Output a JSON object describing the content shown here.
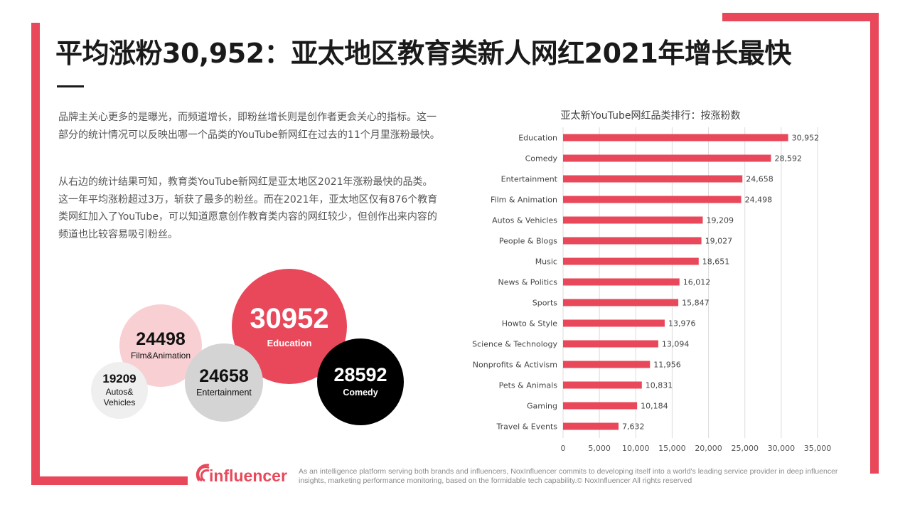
{
  "header": {
    "title": "平均涨粉30,952：亚太地区教育类新人网红2021年增长最快"
  },
  "intro": {
    "paragraph1": "品牌主关心更多的是曝光，而频道增长，即粉丝增长则是创作者更会关心的指标。这一部分的统计情况可以反映出哪一个品类的YouTube新网红在过去的11个月里涨粉最快。",
    "paragraph2": "从右边的统计结果可知，教育类YouTube新网红是亚太地区2021年涨粉最快的品类。这一年平均涨粉超过3万，斩获了最多的粉丝。而在2021年，亚太地区仅有876个教育类网红加入了YouTube，可以知道愿意创作教育类内容的网红较少，但创作出来内容的频道也比较容易吸引粉丝。"
  },
  "bubbles": [
    {
      "value": "30952",
      "label": "Education",
      "fill": "#e8485a",
      "text_color": "#ffffff"
    },
    {
      "value": "28592",
      "label": "Comedy",
      "fill": "#000000",
      "text_color": "#ffffff"
    },
    {
      "value": "24658",
      "label": "Entertainment",
      "fill": "#d4d4d4",
      "text_color": "#111111"
    },
    {
      "value": "24498",
      "label": "Film&Animation",
      "fill": "#f8d0d3",
      "text_color": "#111111"
    },
    {
      "value": "19209",
      "label": "Autos&\nVehicles",
      "fill": "#efefef",
      "text_color": "#111111"
    }
  ],
  "chart_data": {
    "type": "bar",
    "orientation": "horizontal",
    "title": "亚太新YouTube网红品类排行：按涨粉数",
    "categories": [
      "Education",
      "Comedy",
      "Entertainment",
      "Film & Animation",
      "Autos & Vehicles",
      "People & Blogs",
      "Music",
      "News & Politics",
      "Sports",
      "Howto & Style",
      "Science & Technology",
      "Nonprofits & Activism",
      "Pets & Animals",
      "Gaming",
      "Travel & Events"
    ],
    "values": [
      30952,
      28592,
      24658,
      24498,
      19209,
      19027,
      18651,
      16012,
      15847,
      13976,
      13094,
      11956,
      10831,
      10184,
      7632
    ],
    "data_labels": [
      "30,952",
      "28,592",
      "24,658",
      "24,498",
      "19,209",
      "19,027",
      "18,651",
      "16,012",
      "15,847",
      "13,976",
      "13,094",
      "11,956",
      "10,831",
      "10,184",
      "7,632"
    ],
    "xlim": [
      0,
      35000
    ],
    "xticks": [
      0,
      5000,
      10000,
      15000,
      20000,
      25000,
      30000,
      35000
    ],
    "xtick_labels": [
      "0",
      "5,000",
      "10,000",
      "15,000",
      "20,000",
      "25,000",
      "30,000",
      "35,000"
    ],
    "grid": true,
    "bar_color": "#e8485a"
  },
  "footer": {
    "logo_text": "influencer",
    "tagline": "As an intelligence platform serving both brands and influencers, NoxInfluencer commits to developing itself into a world's leading service provider in deep influencer insights, marketing performance monitoring, based on the formidable tech capability.© NoxInfluencer All rights reserved"
  },
  "theme": {
    "accent": "#e8485a"
  }
}
